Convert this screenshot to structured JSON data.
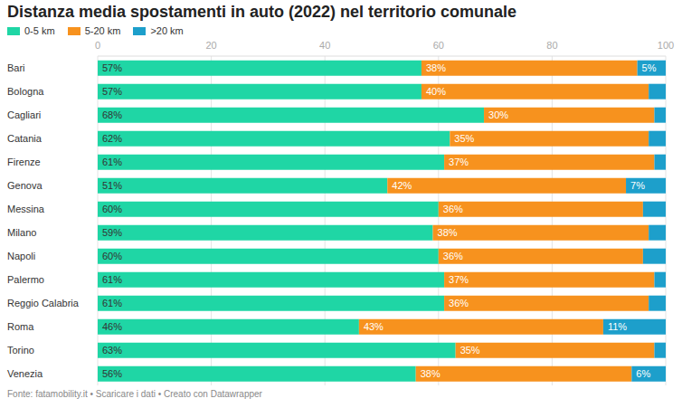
{
  "chart_data": {
    "type": "bar",
    "orientation": "horizontal",
    "stacked": true,
    "data_labels": true,
    "grid": true,
    "legend": "top",
    "title": "Distanza media spostamenti in auto (2022) nel territorio comunale",
    "source": "Fonte: fatamobility.it • Scaricare i dati • Creato con Datawrapper",
    "categories": [
      "Bari",
      "Bologna",
      "Cagliari",
      "Catania",
      "Firenze",
      "Genova",
      "Messina",
      "Milano",
      "Napoli",
      "Palermo",
      "Reggio Calabria",
      "Roma",
      "Torino",
      "Venezia"
    ],
    "xlim": [
      0,
      100
    ],
    "xticks": [
      0,
      20,
      40,
      60,
      80,
      100
    ],
    "series": [
      {
        "name": "0-5 km",
        "color": "#1fd6a5",
        "values": [
          57,
          57,
          68,
          62,
          61,
          51,
          60,
          59,
          60,
          61,
          61,
          46,
          63,
          56
        ],
        "value_labels": [
          "57%",
          "57%",
          "68%",
          "62%",
          "61%",
          "51%",
          "60%",
          "59%",
          "60%",
          "61%",
          "61%",
          "46%",
          "63%",
          "56%"
        ]
      },
      {
        "name": "5-20 km",
        "color": "#f7921e",
        "values": [
          38,
          40,
          30,
          35,
          37,
          42,
          36,
          38,
          36,
          37,
          36,
          43,
          35,
          38
        ],
        "value_labels": [
          "38%",
          "40%",
          "30%",
          "35%",
          "37%",
          "42%",
          "36%",
          "38%",
          "36%",
          "37%",
          "36%",
          "43%",
          "35%",
          "38%"
        ]
      },
      {
        "name": ">20 km",
        "color": "#1d9fcb",
        "values": [
          5,
          3,
          2,
          3,
          2,
          7,
          4,
          3,
          4,
          2,
          3,
          11,
          2,
          6
        ],
        "value_labels": [
          "5%",
          null,
          null,
          null,
          null,
          "7%",
          null,
          null,
          null,
          null,
          null,
          "11%",
          null,
          "6%"
        ]
      }
    ]
  }
}
